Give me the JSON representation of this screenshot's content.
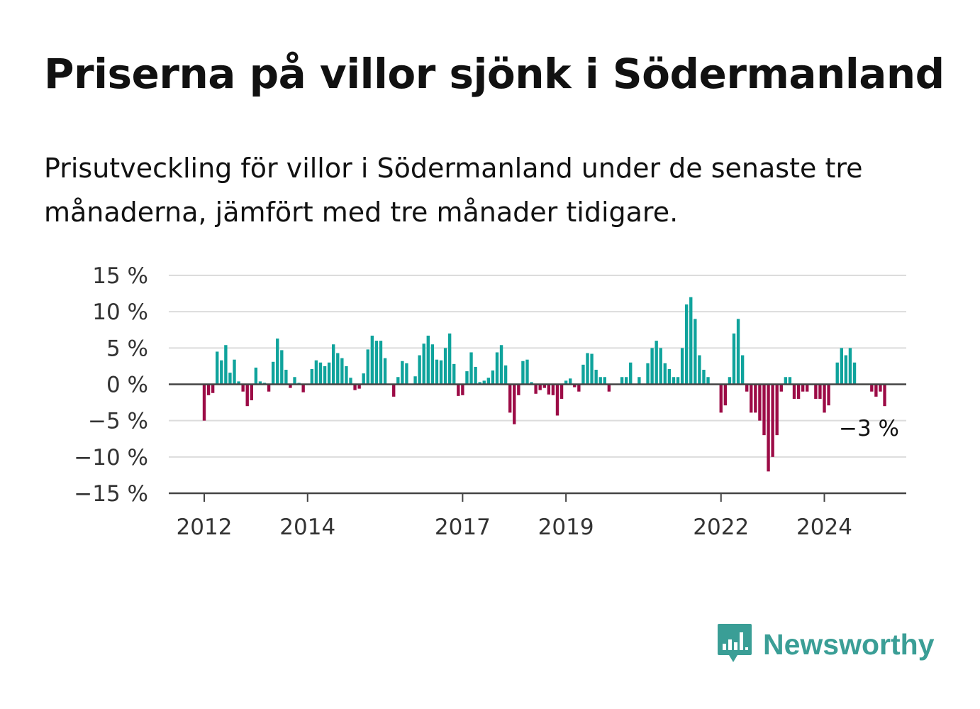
{
  "title": "Priserna på villor sjönk i Södermanland",
  "subtitle": "Prisutveckling för villor i Södermanland under de senaste tre månaderna, jämfört med tre månader tidigare.",
  "brand": {
    "name": "Newsworthy",
    "icon": "newsworthy-logo-icon",
    "color": "#3a9e96"
  },
  "chart_data": {
    "type": "bar",
    "x_ticks": [
      "2012",
      "2014",
      "2017",
      "2019",
      "2022",
      "2024"
    ],
    "y_ticks": [
      "15 %",
      "10 %",
      "5 %",
      "0 %",
      "−5 %",
      "−10 %",
      "−15 %"
    ],
    "y_tick_values": [
      15,
      10,
      5,
      0,
      -5,
      -10,
      -15
    ],
    "ylim": [
      -15,
      15
    ],
    "grid": true,
    "positive_color": "#0fa39c",
    "negative_color": "#9c0b46",
    "annotation": "−3 %",
    "start": "2012-01",
    "frequency": "monthly",
    "values": [
      -5,
      -1.5,
      -1.2,
      4.5,
      3.3,
      5.4,
      1.6,
      3.4,
      0.4,
      -1,
      -3,
      -2.2,
      2.3,
      0.4,
      0.2,
      -1,
      3.1,
      6.3,
      4.7,
      2,
      -0.5,
      1,
      0.2,
      -1.1,
      0.1,
      2.1,
      3.3,
      3,
      2.5,
      3,
      5.5,
      4.3,
      3.6,
      2.5,
      0.9,
      -0.8,
      -0.6,
      1.5,
      4.8,
      6.7,
      6,
      6,
      3.6,
      0.1,
      -1.7,
      1,
      3.2,
      2.9,
      0.1,
      1.1,
      4,
      5.6,
      6.7,
      5.5,
      3.4,
      3.3,
      5,
      7,
      2.8,
      -1.6,
      -1.5,
      1.8,
      4.4,
      2.4,
      0.3,
      0.5,
      0.9,
      1.9,
      4.4,
      5.4,
      2.6,
      -3.9,
      -5.5,
      -1.5,
      3.2,
      3.4,
      0.3,
      -1.3,
      -0.8,
      -0.5,
      -1.4,
      -1.5,
      -4.3,
      -2,
      0.5,
      0.8,
      -0.4,
      -1,
      2.7,
      4.3,
      4.2,
      2,
      1,
      1,
      -1,
      0.1,
      0.1,
      1,
      1,
      3,
      0.1,
      1,
      0.1,
      2.9,
      5,
      6,
      5,
      2.9,
      2.1,
      1,
      1,
      5,
      11,
      12,
      9,
      4,
      2,
      1,
      0.1,
      0.1,
      -3.9,
      -2.9,
      1,
      7,
      9,
      4,
      -1,
      -3.9,
      -3.9,
      -5,
      -7,
      -12,
      -10,
      -7,
      -1,
      1,
      1,
      -2,
      -2,
      -1,
      -1,
      0.1,
      -2,
      -2,
      -3.9,
      -2.9,
      0.1,
      3,
      5,
      4,
      5,
      3,
      0.1,
      0.1,
      0.1,
      -1,
      -1.7,
      -1,
      -3
    ]
  }
}
